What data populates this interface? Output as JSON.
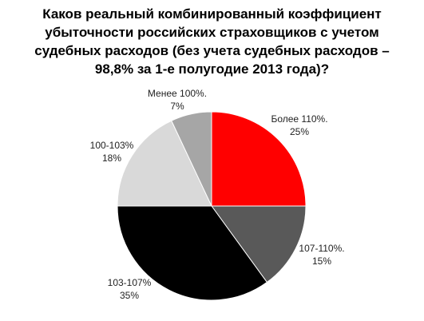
{
  "chart_data": {
    "type": "pie",
    "title": "Каков реальный комбинированный коэффициент убыточности российских страховщиков с учетом судебных расходов (без учета судебных расходов – 98,8% за 1-е полугодие 2013 года)?",
    "categories": [
      "Более 110%.",
      "107-110%.",
      "103-107%",
      "100-103%",
      "Менее 100%."
    ],
    "values": [
      25,
      15,
      35,
      18,
      7
    ],
    "value_labels": [
      "25%",
      "15%",
      "35%",
      "18%",
      "7%"
    ],
    "colors": [
      "#ff0000",
      "#595959",
      "#000000",
      "#d9d9d9",
      "#a6a6a6"
    ]
  }
}
